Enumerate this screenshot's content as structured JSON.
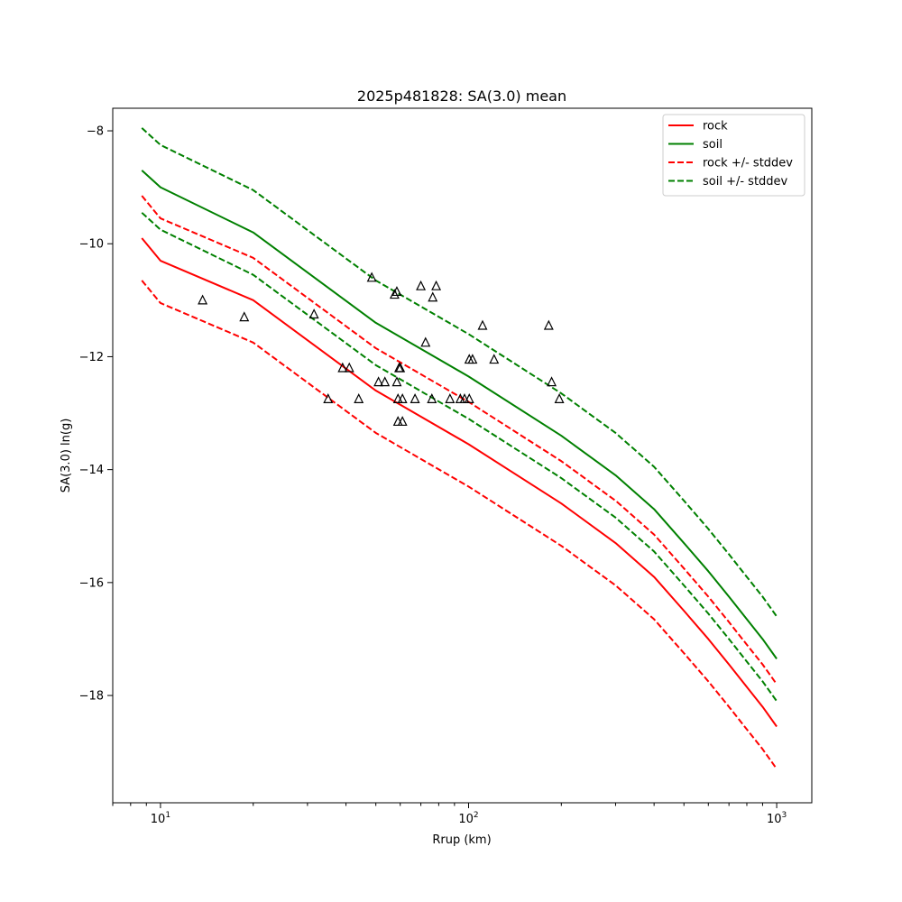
{
  "chart_data": {
    "type": "line",
    "title": "2025p481828: SA(3.0) mean",
    "xlabel": "Rrup (km)",
    "ylabel": "SA(3.0) ln(g)",
    "xscale": "log",
    "xlim": [
      7.0,
      1300
    ],
    "ylim": [
      -19.9,
      -7.6
    ],
    "grid": false,
    "legend_position": "top-right",
    "x_ticks": [
      {
        "value": 10,
        "base": "10",
        "exp": "1"
      },
      {
        "value": 100,
        "base": "10",
        "exp": "2"
      },
      {
        "value": 1000,
        "base": "10",
        "exp": "3"
      }
    ],
    "y_ticks": [
      {
        "value": -8,
        "label": "−8"
      },
      {
        "value": -10,
        "label": "−10"
      },
      {
        "value": -12,
        "label": "−12"
      },
      {
        "value": -14,
        "label": "−14"
      },
      {
        "value": -16,
        "label": "−16"
      },
      {
        "value": -18,
        "label": "−18"
      }
    ],
    "x": [
      8.7,
      10,
      20,
      50,
      100,
      200,
      300,
      400,
      500,
      600,
      700,
      800,
      900,
      1000
    ],
    "series": [
      {
        "name": "rock",
        "color": "#ff0000",
        "dash": "solid",
        "values": [
          -9.9,
          -10.3,
          -11.0,
          -12.6,
          -13.55,
          -14.6,
          -15.3,
          -15.9,
          -16.5,
          -17.0,
          -17.45,
          -17.85,
          -18.2,
          -18.55
        ]
      },
      {
        "name": "soil",
        "color": "#008000",
        "dash": "solid",
        "values": [
          -8.7,
          -9.0,
          -9.8,
          -11.4,
          -12.35,
          -13.4,
          -14.1,
          -14.7,
          -15.3,
          -15.8,
          -16.25,
          -16.65,
          -17.0,
          -17.35
        ]
      },
      {
        "name": "rock +/- stddev",
        "color": "#ff0000",
        "dash": "dashed",
        "values": [
          -9.15,
          -9.55,
          -10.25,
          -11.85,
          -12.8,
          -13.85,
          -14.55,
          -15.15,
          -15.75,
          -16.25,
          -16.7,
          -17.1,
          -17.45,
          -17.8
        ]
      },
      {
        "name": "",
        "legend": false,
        "color": "#ff0000",
        "dash": "dashed",
        "values": [
          -10.65,
          -11.05,
          -11.75,
          -13.35,
          -14.3,
          -15.35,
          -16.05,
          -16.65,
          -17.25,
          -17.75,
          -18.2,
          -18.6,
          -18.95,
          -19.3
        ]
      },
      {
        "name": "soil +/- stddev",
        "color": "#008000",
        "dash": "dashed",
        "values": [
          -7.95,
          -8.25,
          -9.05,
          -10.65,
          -11.6,
          -12.65,
          -13.35,
          -13.95,
          -14.55,
          -15.05,
          -15.5,
          -15.9,
          -16.25,
          -16.6
        ]
      },
      {
        "name": "",
        "legend": false,
        "color": "#008000",
        "dash": "dashed",
        "values": [
          -9.45,
          -9.75,
          -10.55,
          -12.15,
          -13.1,
          -14.15,
          -14.85,
          -15.45,
          -16.05,
          -16.55,
          -17.0,
          -17.4,
          -17.75,
          -18.1
        ]
      }
    ],
    "observations": {
      "marker": "triangle",
      "color": "#000000",
      "points": [
        {
          "x": 13.7,
          "y": -11.0
        },
        {
          "x": 18.7,
          "y": -11.3
        },
        {
          "x": 31.5,
          "y": -11.25
        },
        {
          "x": 35,
          "y": -12.75
        },
        {
          "x": 39,
          "y": -12.2
        },
        {
          "x": 41,
          "y": -12.2
        },
        {
          "x": 44,
          "y": -12.75
        },
        {
          "x": 48.5,
          "y": -10.6
        },
        {
          "x": 51,
          "y": -12.45
        },
        {
          "x": 53.5,
          "y": -12.45
        },
        {
          "x": 57.5,
          "y": -10.9
        },
        {
          "x": 58.5,
          "y": -10.85
        },
        {
          "x": 58.5,
          "y": -12.45
        },
        {
          "x": 59,
          "y": -12.75
        },
        {
          "x": 59,
          "y": -13.15
        },
        {
          "x": 59.5,
          "y": -12.2
        },
        {
          "x": 60,
          "y": -12.2
        },
        {
          "x": 61,
          "y": -12.75
        },
        {
          "x": 61,
          "y": -13.15
        },
        {
          "x": 67,
          "y": -12.75
        },
        {
          "x": 70,
          "y": -10.75
        },
        {
          "x": 72.5,
          "y": -11.75
        },
        {
          "x": 76,
          "y": -12.75
        },
        {
          "x": 76.5,
          "y": -10.95
        },
        {
          "x": 78.5,
          "y": -10.75
        },
        {
          "x": 87,
          "y": -12.75
        },
        {
          "x": 94,
          "y": -12.75
        },
        {
          "x": 97,
          "y": -12.75
        },
        {
          "x": 100.5,
          "y": -12.75
        },
        {
          "x": 100.5,
          "y": -12.05
        },
        {
          "x": 103,
          "y": -12.05
        },
        {
          "x": 111,
          "y": -11.45
        },
        {
          "x": 121,
          "y": -12.05
        },
        {
          "x": 182,
          "y": -11.45
        },
        {
          "x": 186,
          "y": -12.45
        },
        {
          "x": 197,
          "y": -12.75
        }
      ]
    }
  }
}
